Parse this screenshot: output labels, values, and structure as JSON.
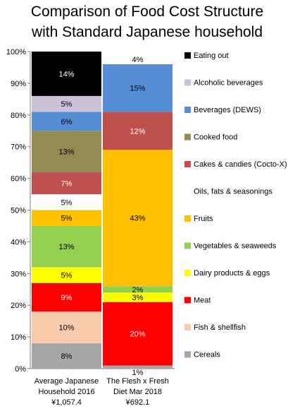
{
  "chart_data": {
    "type": "bar",
    "stacked": true,
    "percent": true,
    "title": [
      "Comparison of Food Cost Structure",
      "with Standard Japanese household"
    ],
    "categories": [
      [
        "Average Japanese",
        "Household 2016",
        "¥1,057.4"
      ],
      [
        "The Flesh x Fresh",
        "Diet Mar 2018",
        "¥692.1"
      ]
    ],
    "ylim": [
      0,
      100
    ],
    "yticks": [
      "0%",
      "10%",
      "20%",
      "30%",
      "40%",
      "50%",
      "60%",
      "70%",
      "80%",
      "90%",
      "100%"
    ],
    "grid": false,
    "legend_position": "right",
    "series": [
      {
        "name": "Cereals",
        "color": "#A6A6A6",
        "values": [
          8,
          1
        ],
        "labels": [
          "8%",
          "1%"
        ]
      },
      {
        "name": "Fish & shellfish",
        "color": "#F8CBAD",
        "values": [
          10,
          0
        ],
        "labels": [
          "10%",
          ""
        ]
      },
      {
        "name": "Meat",
        "color": "#FF0000",
        "values": [
          9,
          20
        ],
        "labels": [
          "9%",
          "20%"
        ]
      },
      {
        "name": "Dairy products & eggs",
        "color": "#FFFF00",
        "values": [
          5,
          3
        ],
        "labels": [
          "5%",
          "3%"
        ]
      },
      {
        "name": "Vegetables & seaweeds",
        "color": "#92D050",
        "values": [
          13,
          2
        ],
        "labels": [
          "13%",
          "2%"
        ]
      },
      {
        "name": "Fruits",
        "color": "#FFC000",
        "values": [
          5,
          43
        ],
        "labels": [
          "5%",
          "43%"
        ]
      },
      {
        "name": "Oils, fats & seasonings",
        "color": "#FFFFFF",
        "values": [
          5,
          0
        ],
        "labels": [
          "5%",
          ""
        ]
      },
      {
        "name": "Cakes & candies (Cocto-X)",
        "color": "#C0504D",
        "values": [
          7,
          12
        ],
        "labels": [
          "7%",
          "12%"
        ]
      },
      {
        "name": "Cooked food",
        "color": "#948A54",
        "values": [
          13,
          0
        ],
        "labels": [
          "13%",
          ""
        ]
      },
      {
        "name": "Beverages (DEWS)",
        "color": "#558ED5",
        "values": [
          6,
          15
        ],
        "labels": [
          "6%",
          "15%"
        ]
      },
      {
        "name": "Alcoholic beverages",
        "color": "#CCC1DA",
        "values": [
          5,
          0
        ],
        "labels": [
          "5%",
          ""
        ]
      },
      {
        "name": "Eating out",
        "color": "#000000",
        "values": [
          14,
          0
        ],
        "labels": [
          "14%",
          ""
        ]
      }
    ],
    "gap_labels": [
      null,
      "4%"
    ]
  }
}
